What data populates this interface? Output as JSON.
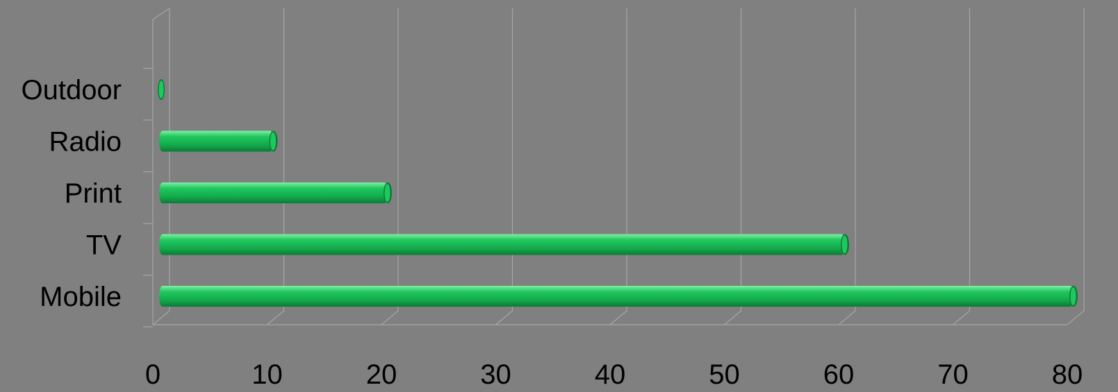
{
  "chart_data": {
    "type": "bar",
    "orientation": "horizontal",
    "style": "3d-cylinder",
    "categories": [
      "Mobile",
      "TV",
      "Print",
      "Radio",
      "Outdoor"
    ],
    "values": [
      80,
      60,
      20,
      10,
      0
    ],
    "xlim": [
      0,
      80
    ],
    "xticks": [
      "0",
      "10",
      "20",
      "30",
      "40",
      "50",
      "60",
      "70",
      "80"
    ],
    "title": "",
    "xlabel": "",
    "ylabel": "",
    "grid": true,
    "legend": "none",
    "colors": {
      "background": "#808080",
      "bar": "#1fc85e",
      "bar_dark": "#0b7a36",
      "bar_highlight": "#7ff0a4",
      "grid": "#a6a6a6"
    }
  }
}
